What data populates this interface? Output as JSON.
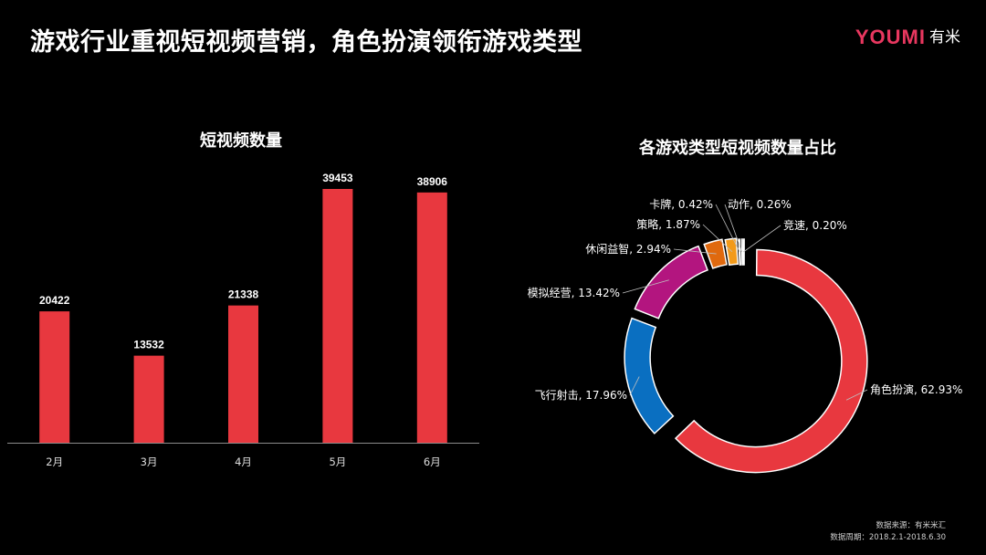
{
  "header": {
    "title": "游戏行业重视短视频营销，角色扮演领衔游戏类型",
    "logo_en": "YOUMI",
    "logo_cn": "有米"
  },
  "colors": {
    "bar": "#e8383f",
    "background": "#000000",
    "slices": [
      "#e8383f",
      "#0a6fc1",
      "#b3157f",
      "#e0690e",
      "#f29a1a",
      "#1ba9d2",
      "#f2f2f2"
    ]
  },
  "chart_data": [
    {
      "type": "bar",
      "title": "短视频数量",
      "categories": [
        "2月",
        "3月",
        "4月",
        "5月",
        "6月"
      ],
      "values": [
        20422,
        13532,
        21338,
        39453,
        38906
      ],
      "xlabel": "",
      "ylabel": "",
      "grid": false
    },
    {
      "type": "pie",
      "donut": true,
      "title": "各游戏类型短视频数量占比",
      "slices": [
        {
          "name": "角色扮演",
          "value": 62.93,
          "label": "角色扮演, 62.93%"
        },
        {
          "name": "飞行射击",
          "value": 17.96,
          "label": "飞行射击, 17.96%"
        },
        {
          "name": "模拟经营",
          "value": 13.42,
          "label": "模拟经营, 13.42%"
        },
        {
          "name": "休闲益智",
          "value": 2.94,
          "label": "休闲益智, 2.94%"
        },
        {
          "name": "策略",
          "value": 1.87,
          "label": "策略, 1.87%"
        },
        {
          "name": "卡牌",
          "value": 0.42,
          "label": "卡牌, 0.42%"
        },
        {
          "name": "动作",
          "value": 0.26,
          "label": "动作, 0.26%"
        },
        {
          "name": "竞速",
          "value": 0.2,
          "label": "竞速, 0.20%"
        }
      ]
    }
  ],
  "footer": {
    "source": "数据来源：有米米汇",
    "period": "数据周期：2018.2.1-2018.6.30"
  }
}
